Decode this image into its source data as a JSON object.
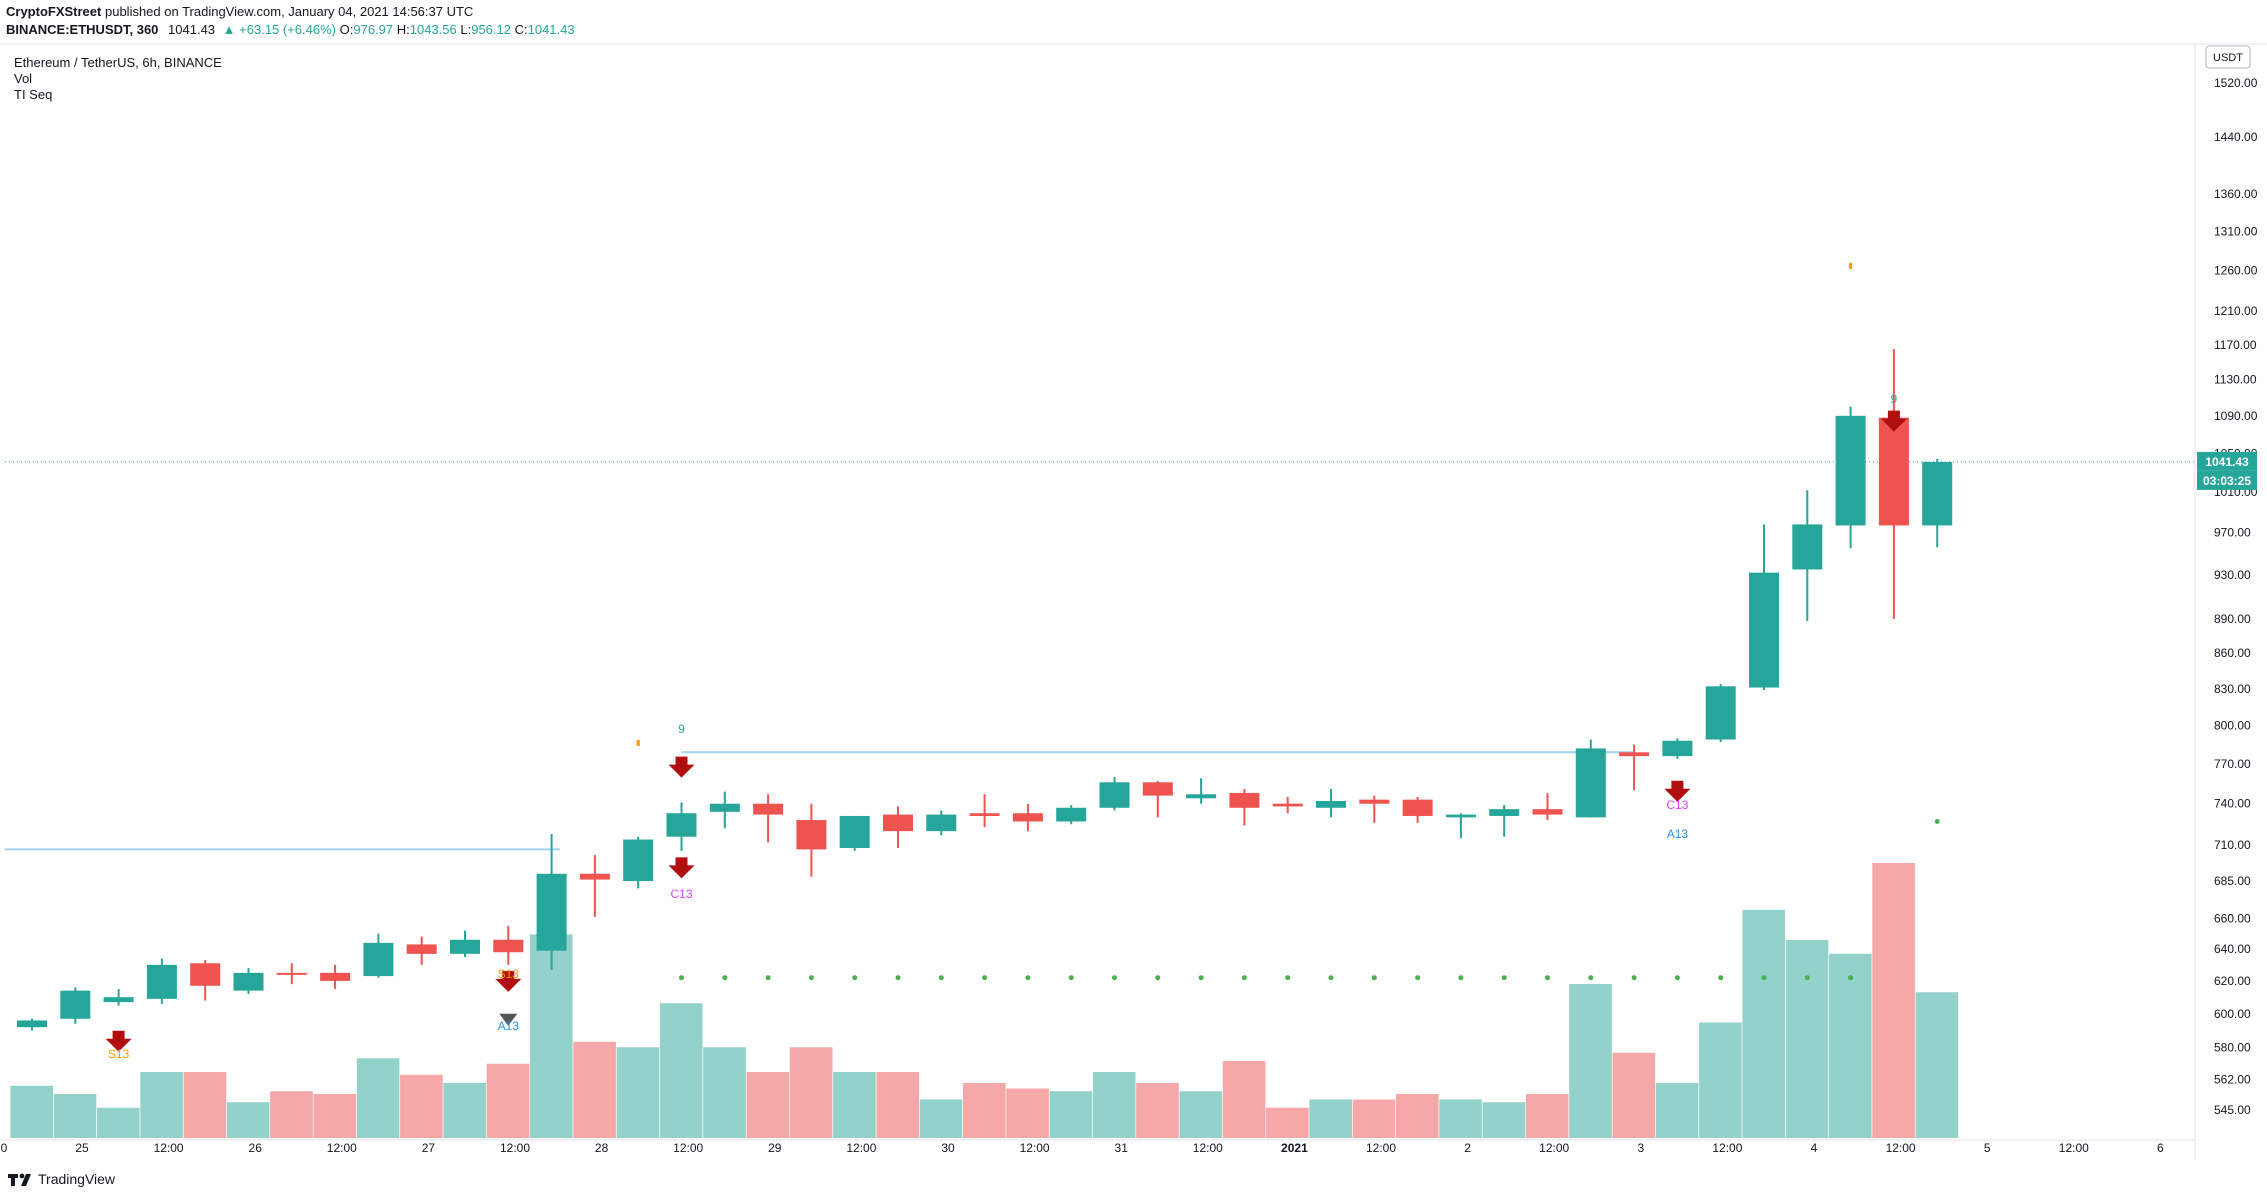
{
  "header": {
    "publisher": "CryptoFXStreet",
    "published_text": "published on TradingView.com, January 04, 2021 14:56:37 UTC",
    "symbol": "BINANCE:ETHUSDT, 360",
    "ohlc": {
      "price": "1041.43",
      "change": "▲ +63.15 (+6.46%)",
      "O_label": "O:",
      "O": "976.97",
      "H_label": "H:",
      "H": "1043.56",
      "L_label": "L:",
      "L": "956.12",
      "C_label": "C:",
      "C": "1041.43"
    }
  },
  "legend": {
    "title": "Ethereum / TetherUS, 6h, BINANCE",
    "vol": "Vol",
    "indicator": "TI Seq"
  },
  "footer": {
    "brand": "TradingView"
  },
  "colors": {
    "up": "#26a69a",
    "down": "#ef5350",
    "vol_up": "#93d1cb",
    "vol_down": "#f5a8a7",
    "arrow": "#b10f0f",
    "dots": "#4caf50",
    "hline": "#9fd4e9",
    "priceline": "#26a69a"
  },
  "chart_data": {
    "type": "candlestick",
    "symbol": "ETHUSDT",
    "timeframe": "6h",
    "y_scale": "log",
    "ylim": [
      530,
      1580
    ],
    "y_axis_unit": "USDT",
    "y_ticks": [
      "1520.00",
      "1440.00",
      "1360.00",
      "1310.00",
      "1260.00",
      "1210.00",
      "1170.00",
      "1130.00",
      "1090.00",
      "1010.00",
      "970.00",
      "930.00",
      "890.00",
      "860.00",
      "830.00",
      "800.00",
      "770.00",
      "740.00",
      "710.00",
      "685.00",
      "660.00",
      "640.00",
      "620.00",
      "600.00",
      "580.00",
      "562.00",
      "545.00"
    ],
    "x_ticks": [
      "25",
      "12:00",
      "26",
      "12:00",
      "27",
      "12:00",
      "28",
      "12:00",
      "29",
      "12:00",
      "30",
      "12:00",
      "31",
      "12:00",
      "2021",
      "12:00",
      "2",
      "12:00",
      "3",
      "12:00",
      "4",
      "12:00",
      "5",
      "12:00",
      "6"
    ],
    "last_price_label": "1041.43",
    "countdown_label": "03:03:25",
    "hidden_tick_label": "1050.00",
    "candles": [
      {
        "o": 592,
        "h": 597,
        "l": 590,
        "c": 596
      },
      {
        "o": 597,
        "h": 616,
        "l": 594,
        "c": 614
      },
      {
        "o": 607,
        "h": 615,
        "l": 605,
        "c": 610
      },
      {
        "o": 609,
        "h": 634,
        "l": 606,
        "c": 630
      },
      {
        "o": 631,
        "h": 633,
        "l": 608,
        "c": 617
      },
      {
        "o": 614,
        "h": 628,
        "l": 612,
        "c": 625
      },
      {
        "o": 625,
        "h": 631,
        "l": 618,
        "c": 624
      },
      {
        "o": 625,
        "h": 630,
        "l": 615,
        "c": 620
      },
      {
        "o": 623,
        "h": 650,
        "l": 622,
        "c": 644
      },
      {
        "o": 643,
        "h": 648,
        "l": 630,
        "c": 637
      },
      {
        "o": 637,
        "h": 652,
        "l": 635,
        "c": 646
      },
      {
        "o": 646,
        "h": 655,
        "l": 630,
        "c": 638
      },
      {
        "o": 639,
        "h": 718,
        "l": 627,
        "c": 690
      },
      {
        "o": 690,
        "h": 703,
        "l": 661,
        "c": 686
      },
      {
        "o": 685,
        "h": 716,
        "l": 680,
        "c": 714
      },
      {
        "o": 716,
        "h": 741,
        "l": 706,
        "c": 733
      },
      {
        "o": 734,
        "h": 749,
        "l": 722,
        "c": 740
      },
      {
        "o": 740,
        "h": 747,
        "l": 712,
        "c": 732
      },
      {
        "o": 728,
        "h": 740,
        "l": 688,
        "c": 707
      },
      {
        "o": 708,
        "h": 731,
        "l": 706,
        "c": 731
      },
      {
        "o": 732,
        "h": 738,
        "l": 708,
        "c": 720
      },
      {
        "o": 720,
        "h": 735,
        "l": 717,
        "c": 732
      },
      {
        "o": 733,
        "h": 747,
        "l": 723,
        "c": 731
      },
      {
        "o": 733,
        "h": 740,
        "l": 720,
        "c": 727
      },
      {
        "o": 727,
        "h": 739,
        "l": 725,
        "c": 737
      },
      {
        "o": 737,
        "h": 760,
        "l": 735,
        "c": 756
      },
      {
        "o": 756,
        "h": 757,
        "l": 730,
        "c": 746
      },
      {
        "o": 744,
        "h": 759,
        "l": 740,
        "c": 747
      },
      {
        "o": 748,
        "h": 751,
        "l": 724,
        "c": 737
      },
      {
        "o": 740,
        "h": 745,
        "l": 733,
        "c": 738
      },
      {
        "o": 737,
        "h": 751,
        "l": 730,
        "c": 742
      },
      {
        "o": 743,
        "h": 746,
        "l": 726,
        "c": 740
      },
      {
        "o": 743,
        "h": 745,
        "l": 726,
        "c": 731
      },
      {
        "o": 730,
        "h": 733,
        "l": 715,
        "c": 732
      },
      {
        "o": 731,
        "h": 739,
        "l": 716,
        "c": 736
      },
      {
        "o": 736,
        "h": 748,
        "l": 728,
        "c": 732
      },
      {
        "o": 730,
        "h": 789,
        "l": 730,
        "c": 782
      },
      {
        "o": 779,
        "h": 785,
        "l": 750,
        "c": 776
      },
      {
        "o": 776,
        "h": 790,
        "l": 774,
        "c": 788
      },
      {
        "o": 789,
        "h": 834,
        "l": 787,
        "c": 832
      },
      {
        "o": 831,
        "h": 978,
        "l": 829,
        "c": 932
      },
      {
        "o": 935,
        "h": 1012,
        "l": 888,
        "c": 978
      },
      {
        "o": 977,
        "h": 1100,
        "l": 955,
        "c": 1090
      },
      {
        "o": 1088,
        "h": 1165,
        "l": 890,
        "c": 977
      },
      {
        "o": 977,
        "h": 1044,
        "l": 956,
        "c": 1041
      }
    ],
    "volume_relative": [
      0.19,
      0.16,
      0.11,
      0.24,
      0.24,
      0.13,
      0.17,
      0.16,
      0.29,
      0.23,
      0.2,
      0.27,
      0.74,
      0.35,
      0.33,
      0.49,
      0.33,
      0.24,
      0.33,
      0.24,
      0.24,
      0.14,
      0.2,
      0.18,
      0.17,
      0.24,
      0.2,
      0.17,
      0.28,
      0.11,
      0.14,
      0.14,
      0.16,
      0.14,
      0.13,
      0.16,
      0.56,
      0.31,
      0.2,
      0.42,
      0.83,
      0.72,
      0.67,
      1.0,
      0.53
    ],
    "sequential_labels": [
      {
        "bar": 2,
        "text": "S13",
        "color": "#ff9800",
        "below": true
      },
      {
        "bar": 11,
        "text": "S13",
        "color": "#ff9800",
        "below": true
      },
      {
        "bar": 11,
        "text": "A13",
        "color": "#2196f3",
        "below": true
      },
      {
        "bar": 15,
        "text": "9",
        "color": "#22ab94",
        "below": false
      },
      {
        "bar": 15,
        "text": "C13",
        "color": "#e040fb",
        "below": true
      },
      {
        "bar": 38,
        "text": "C13",
        "color": "#e040fb",
        "below": true
      },
      {
        "bar": 38,
        "text": "A13",
        "color": "#2196f3",
        "below": true
      },
      {
        "bar": 43,
        "text": "9",
        "color": "#22ab94",
        "below": false
      }
    ],
    "resistance_levels": [
      707,
      779
    ],
    "dot_level": 622
  }
}
